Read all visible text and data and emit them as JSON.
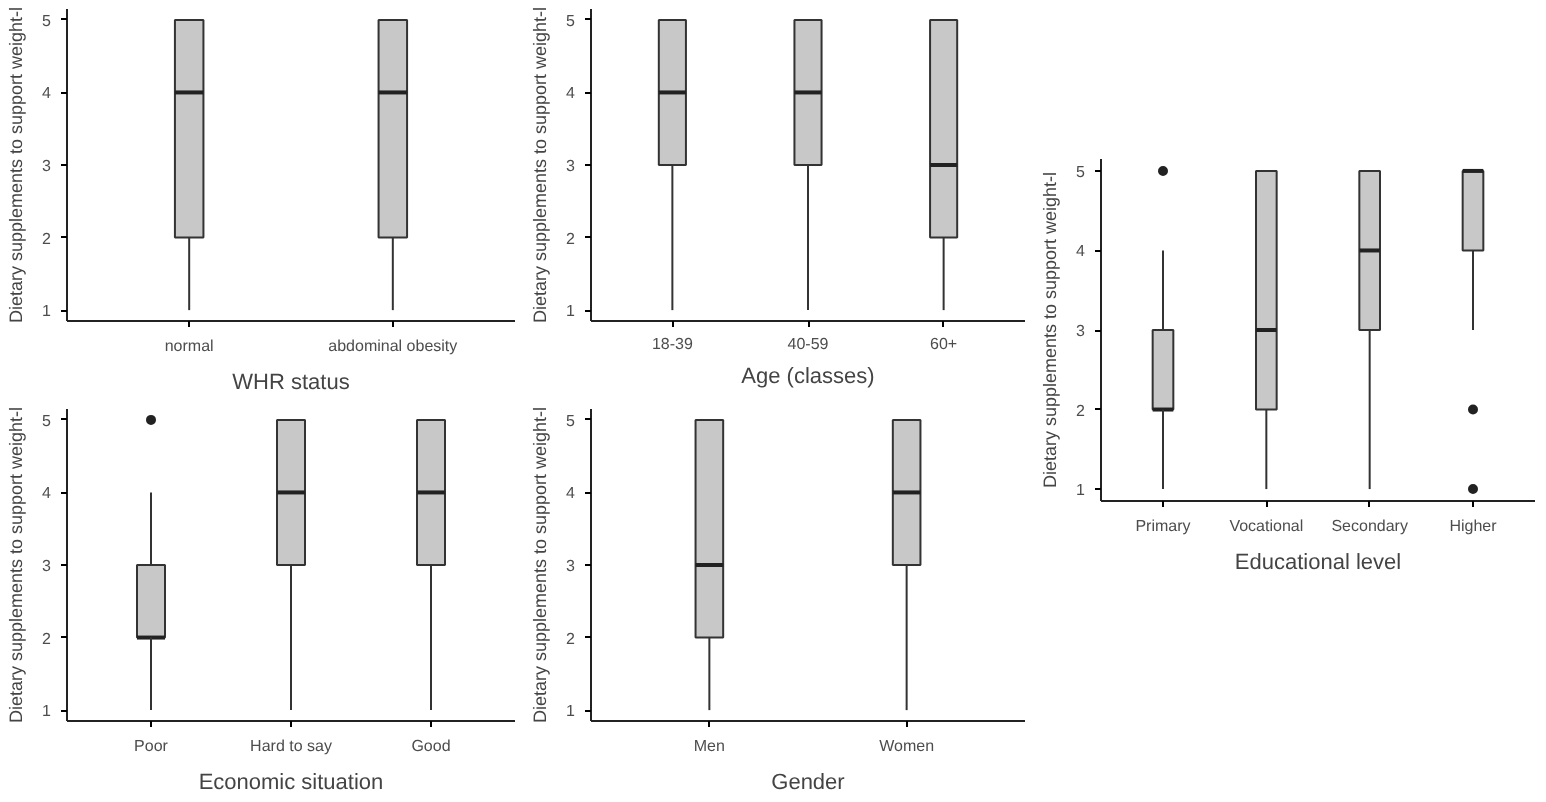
{
  "chart_data": [
    {
      "type": "box",
      "xlabel": "WHR status",
      "ylabel": "Dietary supplements to support weight-l",
      "categories": [
        "normal",
        "abdominal obesity"
      ],
      "boxes": [
        {
          "low": 1,
          "q1": 2,
          "median": 4,
          "q3": 5,
          "high": 5
        },
        {
          "low": 1,
          "q1": 2,
          "median": 4,
          "q3": 5,
          "high": 5
        }
      ],
      "color": "#c8c8c8",
      "ylim": [
        0.85,
        5.15
      ],
      "yticks": [
        1,
        2,
        3,
        4,
        5
      ],
      "grid": false
    },
    {
      "type": "box",
      "xlabel": "Age (classes)",
      "ylabel": "Dietary supplements to support weight-l",
      "categories": [
        "18-39",
        "40-59",
        "60+"
      ],
      "boxes": [
        {
          "low": 1,
          "q1": 3,
          "median": 4,
          "q3": 5,
          "high": 5
        },
        {
          "low": 1,
          "q1": 3,
          "median": 4,
          "q3": 5,
          "high": 5
        },
        {
          "low": 1,
          "q1": 2,
          "median": 3,
          "q3": 5,
          "high": 5
        }
      ],
      "color": "#c8c8c8",
      "ylim": [
        0.85,
        5.15
      ],
      "yticks": [
        1,
        2,
        3,
        4,
        5
      ],
      "grid": false
    },
    {
      "type": "box",
      "xlabel": "Educational level",
      "ylabel": "Dietary supplements to support weight-l",
      "categories": [
        "Primary",
        "Vocational",
        "Secondary",
        "Higher"
      ],
      "boxes": [
        {
          "low": 1,
          "q1": 2,
          "median": 2,
          "q3": 3,
          "high": 4,
          "outliers": [
            5
          ]
        },
        {
          "low": 1,
          "q1": 2,
          "median": 3,
          "q3": 5,
          "high": 5
        },
        {
          "low": 1,
          "q1": 3,
          "median": 4,
          "q3": 5,
          "high": 5
        },
        {
          "low": 3,
          "q1": 4,
          "median": 5,
          "q3": 5,
          "high": 5,
          "outliers": [
            2,
            1
          ]
        }
      ],
      "color": "#c8c8c8",
      "ylim": [
        0.85,
        5.15
      ],
      "yticks": [
        1,
        2,
        3,
        4,
        5
      ],
      "grid": false
    },
    {
      "type": "box",
      "xlabel": "Economic situation",
      "ylabel": "Dietary supplements to support weight-l",
      "categories": [
        "Poor",
        "Hard to say",
        "Good"
      ],
      "boxes": [
        {
          "low": 1,
          "q1": 2,
          "median": 2,
          "q3": 3,
          "high": 4,
          "outliers": [
            5
          ]
        },
        {
          "low": 1,
          "q1": 3,
          "median": 4,
          "q3": 5,
          "high": 5
        },
        {
          "low": 1,
          "q1": 3,
          "median": 4,
          "q3": 5,
          "high": 5
        }
      ],
      "color": "#c8c8c8",
      "ylim": [
        0.85,
        5.15
      ],
      "yticks": [
        1,
        2,
        3,
        4,
        5
      ],
      "grid": false
    },
    {
      "type": "box",
      "xlabel": "Gender",
      "ylabel": "Dietary supplements to support weight-l",
      "categories": [
        "Men",
        "Women"
      ],
      "boxes": [
        {
          "low": 1,
          "q1": 2,
          "median": 3,
          "q3": 5,
          "high": 5
        },
        {
          "low": 1,
          "q1": 3,
          "median": 4,
          "q3": 5,
          "high": 5
        }
      ],
      "color": "#c8c8c8",
      "ylim": [
        0.85,
        5.15
      ],
      "yticks": [
        1,
        2,
        3,
        4,
        5
      ],
      "grid": false
    }
  ]
}
